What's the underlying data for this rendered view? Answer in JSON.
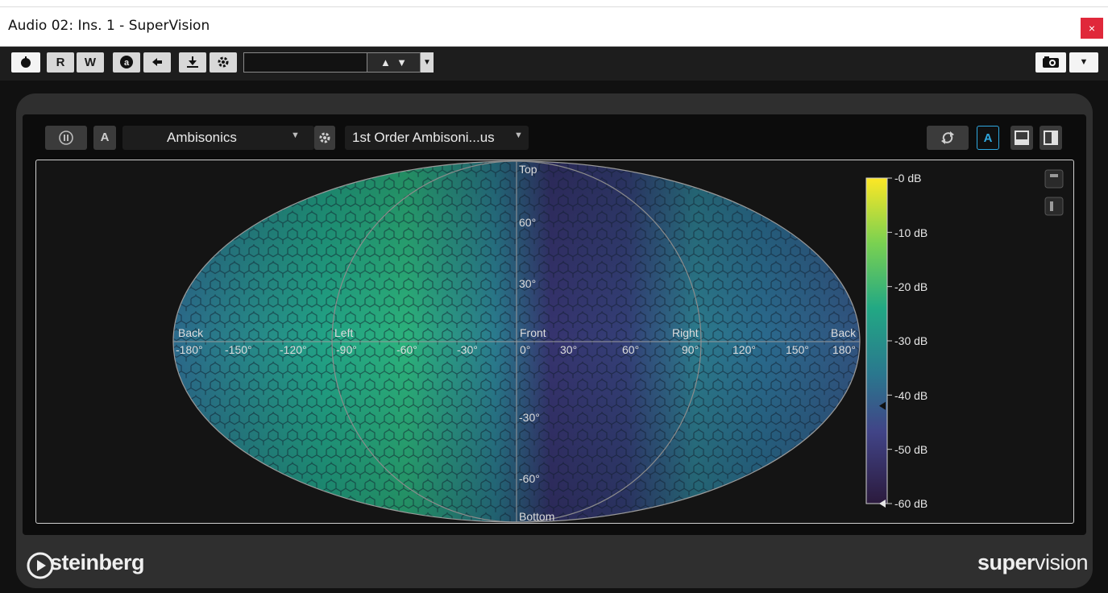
{
  "window": {
    "title": "Audio 02: Ins. 1 - SuperVision",
    "close_label": "×"
  },
  "toolbar": {
    "read_label": "R",
    "write_label": "W",
    "auto_label": "a",
    "preset_value": ""
  },
  "module": {
    "mode_label": "A",
    "module_name": "Ambisonics",
    "format_name": "1st Order Ambisoni...us",
    "auto_label": "A"
  },
  "display": {
    "top_label": "Top",
    "bottom_label": "Bottom",
    "positions": [
      "Back",
      "Left",
      "Front",
      "Right",
      "Back"
    ],
    "azimuth_ticks": [
      "-180°",
      "-150°",
      "-120°",
      "-90°",
      "-60°",
      "-30°",
      "0°",
      "30°",
      "60°",
      "90°",
      "120°",
      "150°",
      "180°"
    ],
    "elevation_ticks": [
      "60°",
      "30°",
      "-30°",
      "-60°"
    ],
    "meter_scale": [
      "-0 dB",
      "-10 dB",
      "-20 dB",
      "-30 dB",
      "-40 dB",
      "-50 dB",
      "-60 dB"
    ],
    "peak_marker_db": -42,
    "floor_marker_db": -60
  },
  "footer": {
    "logo": "steinberg",
    "brand_bold": "super",
    "brand_light": "vision"
  },
  "colors": {
    "accent": "#2fa8e0",
    "close": "#e0283a",
    "heat_high": "#fde725",
    "heat_mid": "#26a884",
    "heat_low": "#3b2f6a"
  }
}
